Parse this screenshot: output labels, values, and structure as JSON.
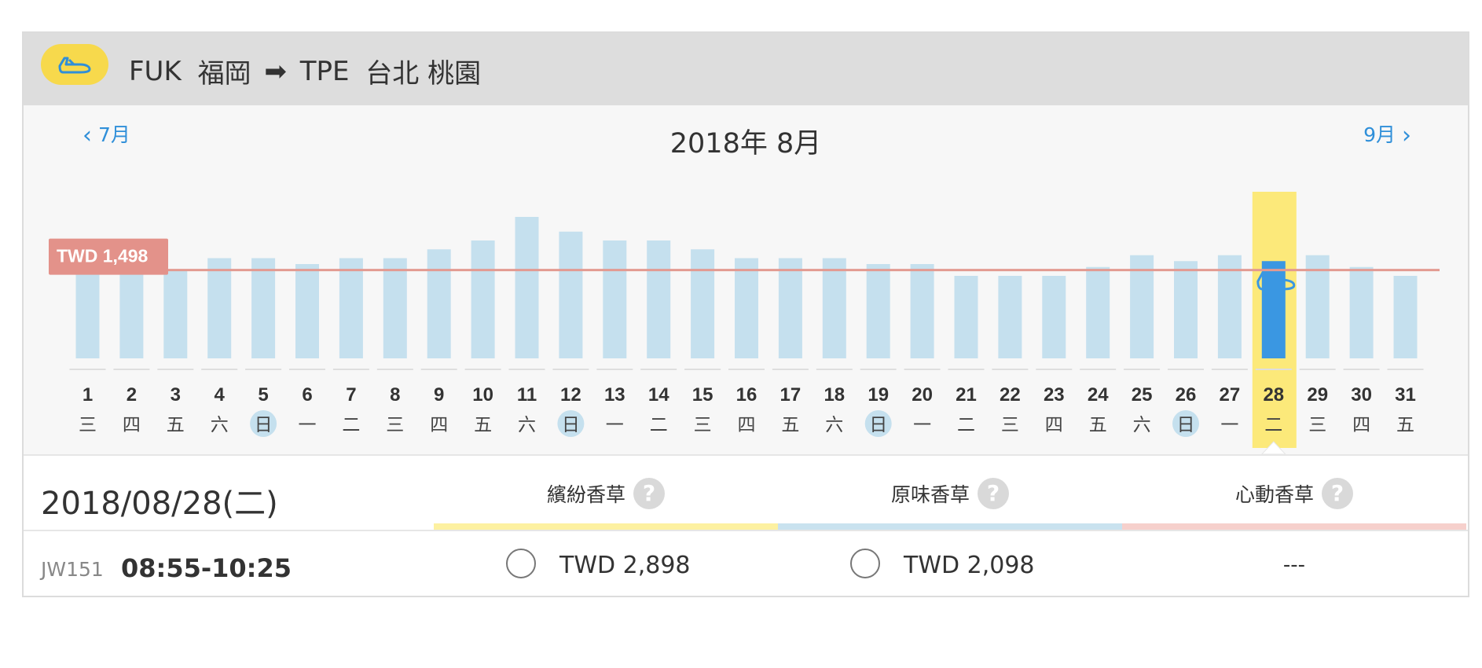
{
  "route": {
    "origin_code": "FUK",
    "origin_city": "福岡",
    "dest_code": "TPE",
    "dest_city": "台北 桃園",
    "arrow": "➡"
  },
  "nav": {
    "prev": "7月",
    "next": "9月",
    "title": "2018年 8月"
  },
  "price_line_label": "TWD 1,498",
  "colors": {
    "bar": "#c5e0ee",
    "bar_selected": "#3a97e2",
    "selected_band": "#fce97a",
    "price_line": "#e39a91",
    "price_tag": "#e3928a",
    "sunday_circle": "#c5e0ee",
    "brand_yellow": "#f7d94c",
    "accent_blue": "#2f8fd9"
  },
  "chart_data": {
    "type": "bar",
    "categories": [
      "1",
      "2",
      "3",
      "4",
      "5",
      "6",
      "7",
      "8",
      "9",
      "10",
      "11",
      "12",
      "13",
      "14",
      "15",
      "16",
      "17",
      "18",
      "19",
      "20",
      "21",
      "22",
      "23",
      "24",
      "25",
      "26",
      "27",
      "28",
      "29",
      "30",
      "31"
    ],
    "weekdays": [
      "三",
      "四",
      "五",
      "六",
      "日",
      "一",
      "二",
      "三",
      "四",
      "五",
      "六",
      "日",
      "一",
      "二",
      "三",
      "四",
      "五",
      "六",
      "日",
      "一",
      "二",
      "三",
      "四",
      "五",
      "六",
      "日",
      "一",
      "二",
      "三",
      "四",
      "五"
    ],
    "values": [
      1498,
      1498,
      1498,
      1700,
      1700,
      1600,
      1700,
      1700,
      1850,
      2000,
      2400,
      2150,
      2000,
      2000,
      1850,
      1700,
      1700,
      1700,
      1600,
      1600,
      1400,
      1400,
      1400,
      1550,
      1750,
      1650,
      1750,
      1650,
      1750,
      1550,
      1400
    ],
    "selected_index": 27,
    "sunday_indices": [
      4,
      11,
      18,
      25
    ],
    "reference_line": 1498,
    "ylim": [
      0,
      2600
    ]
  },
  "selection": {
    "date": "2018/08/28(二)"
  },
  "fare_types": [
    {
      "name": "繽紛香草",
      "help": "?",
      "color": "#fdf1a1"
    },
    {
      "name": "原味香草",
      "help": "?",
      "color": "#c9e2ef"
    },
    {
      "name": "心動香草",
      "help": "?",
      "color": "#f6d0cc"
    }
  ],
  "flight": {
    "number": "JW151",
    "time": "08:55-10:25",
    "prices": [
      "TWD 2,898",
      "TWD 2,098",
      "---"
    ]
  }
}
